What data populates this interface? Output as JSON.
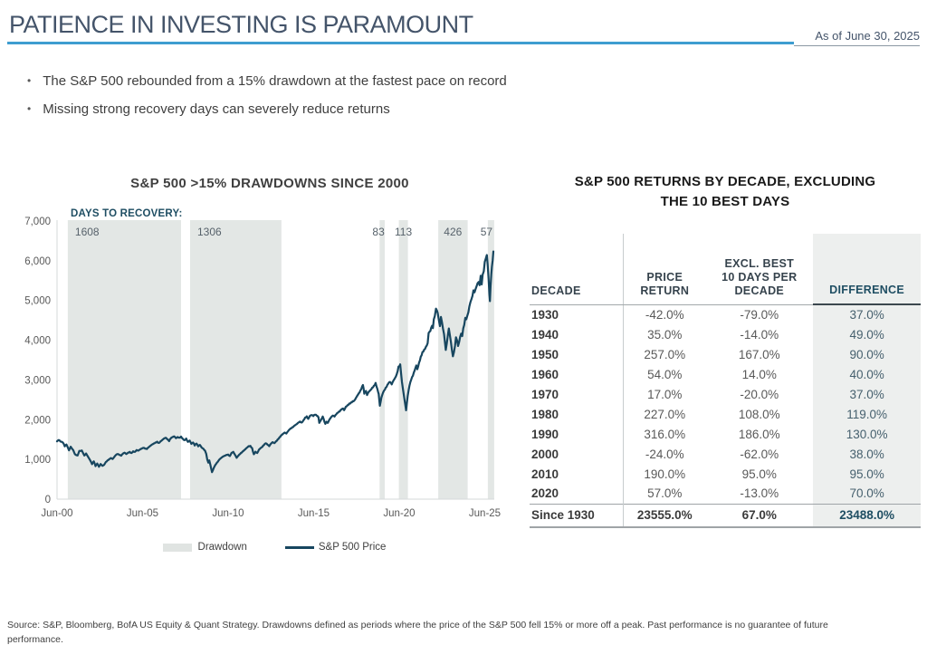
{
  "header": {
    "title": "PATIENCE IN INVESTING IS PARAMOUNT",
    "as_of": "As of June 30, 2025"
  },
  "bullets": [
    "The S&P 500 rebounded from a 15% drawdown at the fastest pace on record",
    "Missing strong recovery days can severely reduce returns"
  ],
  "colors": {
    "accent_rule": "#3E9DD0",
    "price_line": "#17465F",
    "drawdown_fill": "#E3E7E5",
    "axis_line": "#D6D9DA",
    "tick_text": "#595959",
    "region_label_text": "#57626B",
    "navy": "#1F4E63",
    "difference_bg": "#EDEFEE"
  },
  "chart_data": {
    "type": "line",
    "title": "S&P 500 >15% DRAWDOWNS SINCE 2000",
    "annotation_header": "DAYS TO RECOVERY:",
    "series_name": "S&P 500 Price",
    "legend": [
      "Drawdown",
      "S&P 500 Price"
    ],
    "ylim": [
      0,
      7000
    ],
    "x_axis_note": "x is years since Jun-2000",
    "x_ticks": [
      {
        "o": 0,
        "label": "Jun-00"
      },
      {
        "o": 5,
        "label": "Jun-05"
      },
      {
        "o": 10,
        "label": "Jun-10"
      },
      {
        "o": 15,
        "label": "Jun-15"
      },
      {
        "o": 20,
        "label": "Jun-20"
      },
      {
        "o": 25,
        "label": "Jun-25"
      }
    ],
    "y_ticks": [
      {
        "v": 0,
        "label": "0"
      },
      {
        "v": 1000,
        "label": "1,000"
      },
      {
        "v": 2000,
        "label": "2,000"
      },
      {
        "v": 3000,
        "label": "3,000"
      },
      {
        "v": 4000,
        "label": "4,000"
      },
      {
        "v": 5000,
        "label": "5,000"
      },
      {
        "v": 6000,
        "label": "6,000"
      },
      {
        "v": 7000,
        "label": "7,000"
      }
    ],
    "drawdowns": [
      {
        "label": "1608",
        "start": 0.63,
        "end": 7.25,
        "anchor": "start",
        "dx": 8
      },
      {
        "label": "1306",
        "start": 7.78,
        "end": 13.12,
        "anchor": "start",
        "dx": 8
      },
      {
        "label": "83",
        "start": 18.85,
        "end": 19.15,
        "anchor": "middle",
        "dx": -4
      },
      {
        "label": "113",
        "start": 19.98,
        "end": 20.51,
        "anchor": "middle",
        "dx": 0
      },
      {
        "label": "426",
        "start": 22.28,
        "end": 24.0,
        "anchor": "middle",
        "dx": 0
      },
      {
        "label": "57",
        "start": 25.18,
        "end": 25.55,
        "anchor": "middle",
        "dx": -5
      }
    ],
    "price": [
      [
        0,
        1455
      ],
      [
        0.1,
        1490
      ],
      [
        0.2,
        1450
      ],
      [
        0.35,
        1420
      ],
      [
        0.45,
        1330
      ],
      [
        0.55,
        1375
      ],
      [
        0.7,
        1230
      ],
      [
        0.8,
        1320
      ],
      [
        0.95,
        1230
      ],
      [
        1.05,
        1130
      ],
      [
        1.2,
        1100
      ],
      [
        1.3,
        1215
      ],
      [
        1.45,
        1225
      ],
      [
        1.6,
        1100
      ],
      [
        1.7,
        1150
      ],
      [
        1.85,
        1040
      ],
      [
        1.95,
        965
      ],
      [
        2.05,
        880
      ],
      [
        2.15,
        950
      ],
      [
        2.25,
        830
      ],
      [
        2.35,
        895
      ],
      [
        2.45,
        815
      ],
      [
        2.55,
        885
      ],
      [
        2.65,
        840
      ],
      [
        2.75,
        865
      ],
      [
        2.85,
        935
      ],
      [
        2.95,
        975
      ],
      [
        3.05,
        1005
      ],
      [
        3.15,
        1035
      ],
      [
        3.25,
        1010
      ],
      [
        3.35,
        1065
      ],
      [
        3.45,
        1115
      ],
      [
        3.55,
        1135
      ],
      [
        3.65,
        1110
      ],
      [
        3.75,
        1095
      ],
      [
        3.85,
        1145
      ],
      [
        3.95,
        1170
      ],
      [
        4.05,
        1135
      ],
      [
        4.15,
        1170
      ],
      [
        4.25,
        1190
      ],
      [
        4.35,
        1160
      ],
      [
        4.45,
        1205
      ],
      [
        4.55,
        1190
      ],
      [
        4.65,
        1235
      ],
      [
        4.75,
        1220
      ],
      [
        4.85,
        1250
      ],
      [
        4.95,
        1270
      ],
      [
        5.05,
        1290
      ],
      [
        5.15,
        1270
      ],
      [
        5.25,
        1260
      ],
      [
        5.35,
        1305
      ],
      [
        5.45,
        1340
      ],
      [
        5.55,
        1375
      ],
      [
        5.65,
        1400
      ],
      [
        5.75,
        1425
      ],
      [
        5.85,
        1445
      ],
      [
        5.95,
        1415
      ],
      [
        6.05,
        1455
      ],
      [
        6.15,
        1490
      ],
      [
        6.25,
        1525
      ],
      [
        6.35,
        1545
      ],
      [
        6.45,
        1505
      ],
      [
        6.55,
        1460
      ],
      [
        6.65,
        1530
      ],
      [
        6.75,
        1560
      ],
      [
        6.85,
        1580
      ],
      [
        6.95,
        1535
      ],
      [
        7.05,
        1565
      ],
      [
        7.15,
        1545
      ],
      [
        7.25,
        1575
      ],
      [
        7.35,
        1520
      ],
      [
        7.45,
        1485
      ],
      [
        7.55,
        1525
      ],
      [
        7.65,
        1440
      ],
      [
        7.75,
        1475
      ],
      [
        7.85,
        1390
      ],
      [
        7.95,
        1425
      ],
      [
        8.05,
        1350
      ],
      [
        8.15,
        1400
      ],
      [
        8.25,
        1330
      ],
      [
        8.35,
        1365
      ],
      [
        8.45,
        1300
      ],
      [
        8.55,
        1270
      ],
      [
        8.65,
        1220
      ],
      [
        8.72,
        1140
      ],
      [
        8.78,
        1000
      ],
      [
        8.84,
        920
      ],
      [
        8.9,
        975
      ],
      [
        8.96,
        870
      ],
      [
        9.02,
        745
      ],
      [
        9.06,
        680
      ],
      [
        9.12,
        740
      ],
      [
        9.2,
        820
      ],
      [
        9.3,
        890
      ],
      [
        9.4,
        945
      ],
      [
        9.5,
        1000
      ],
      [
        9.6,
        1040
      ],
      [
        9.7,
        1075
      ],
      [
        9.8,
        1095
      ],
      [
        9.9,
        1115
      ],
      [
        10.0,
        1125
      ],
      [
        10.1,
        1085
      ],
      [
        10.2,
        1165
      ],
      [
        10.3,
        1190
      ],
      [
        10.4,
        1115
      ],
      [
        10.5,
        1040
      ],
      [
        10.6,
        1095
      ],
      [
        10.7,
        1135
      ],
      [
        10.8,
        1175
      ],
      [
        10.9,
        1215
      ],
      [
        11.0,
        1255
      ],
      [
        11.1,
        1295
      ],
      [
        11.2,
        1335
      ],
      [
        11.3,
        1340
      ],
      [
        11.4,
        1285
      ],
      [
        11.5,
        1130
      ],
      [
        11.6,
        1195
      ],
      [
        11.7,
        1160
      ],
      [
        11.8,
        1245
      ],
      [
        11.9,
        1285
      ],
      [
        12.0,
        1315
      ],
      [
        12.1,
        1365
      ],
      [
        12.2,
        1405
      ],
      [
        12.3,
        1370
      ],
      [
        12.4,
        1335
      ],
      [
        12.5,
        1395
      ],
      [
        12.6,
        1435
      ],
      [
        12.7,
        1410
      ],
      [
        12.8,
        1455
      ],
      [
        12.9,
        1505
      ],
      [
        13.0,
        1555
      ],
      [
        13.1,
        1605
      ],
      [
        13.2,
        1645
      ],
      [
        13.3,
        1675
      ],
      [
        13.4,
        1650
      ],
      [
        13.5,
        1705
      ],
      [
        13.6,
        1755
      ],
      [
        13.7,
        1785
      ],
      [
        13.8,
        1815
      ],
      [
        13.9,
        1855
      ],
      [
        14.0,
        1885
      ],
      [
        14.1,
        1925
      ],
      [
        14.2,
        1955
      ],
      [
        14.3,
        1930
      ],
      [
        14.4,
        1985
      ],
      [
        14.5,
        2055
      ],
      [
        14.6,
        2085
      ],
      [
        14.68,
        2020
      ],
      [
        14.78,
        2095
      ],
      [
        14.88,
        2115
      ],
      [
        14.98,
        2090
      ],
      [
        15.08,
        2125
      ],
      [
        15.18,
        2100
      ],
      [
        15.28,
        2060
      ],
      [
        15.33,
        1920
      ],
      [
        15.43,
        1995
      ],
      [
        15.53,
        2080
      ],
      [
        15.58,
        2020
      ],
      [
        15.68,
        1895
      ],
      [
        15.75,
        1950
      ],
      [
        15.82,
        1920
      ],
      [
        15.92,
        2005
      ],
      [
        16.02,
        2065
      ],
      [
        16.12,
        2105
      ],
      [
        16.22,
        2080
      ],
      [
        16.32,
        2135
      ],
      [
        16.42,
        2175
      ],
      [
        16.52,
        2205
      ],
      [
        16.62,
        2255
      ],
      [
        16.72,
        2280
      ],
      [
        16.78,
        2240
      ],
      [
        16.88,
        2325
      ],
      [
        16.98,
        2365
      ],
      [
        17.08,
        2405
      ],
      [
        17.18,
        2435
      ],
      [
        17.28,
        2465
      ],
      [
        17.38,
        2485
      ],
      [
        17.48,
        2555
      ],
      [
        17.58,
        2625
      ],
      [
        17.68,
        2685
      ],
      [
        17.78,
        2765
      ],
      [
        17.88,
        2872
      ],
      [
        17.96,
        2655
      ],
      [
        18.06,
        2725
      ],
      [
        18.12,
        2620
      ],
      [
        18.22,
        2705
      ],
      [
        18.32,
        2745
      ],
      [
        18.42,
        2805
      ],
      [
        18.52,
        2855
      ],
      [
        18.62,
        2925
      ],
      [
        18.72,
        2780
      ],
      [
        18.8,
        2650
      ],
      [
        18.87,
        2350
      ],
      [
        18.96,
        2555
      ],
      [
        19.06,
        2685
      ],
      [
        19.16,
        2755
      ],
      [
        19.26,
        2825
      ],
      [
        19.36,
        2905
      ],
      [
        19.46,
        2950
      ],
      [
        19.56,
        2890
      ],
      [
        19.66,
        2985
      ],
      [
        19.76,
        3055
      ],
      [
        19.86,
        3155
      ],
      [
        19.96,
        3335
      ],
      [
        20.06,
        3393
      ],
      [
        20.16,
        2950
      ],
      [
        20.26,
        2650
      ],
      [
        20.33,
        2450
      ],
      [
        20.4,
        2237
      ],
      [
        20.5,
        2605
      ],
      [
        20.6,
        2855
      ],
      [
        20.7,
        3005
      ],
      [
        20.8,
        3105
      ],
      [
        20.9,
        3235
      ],
      [
        21.0,
        3365
      ],
      [
        21.06,
        3270
      ],
      [
        21.16,
        3435
      ],
      [
        21.26,
        3585
      ],
      [
        21.36,
        3705
      ],
      [
        21.46,
        3765
      ],
      [
        21.56,
        3835
      ],
      [
        21.66,
        3925
      ],
      [
        21.72,
        4185
      ],
      [
        21.82,
        4235
      ],
      [
        21.92,
        4365
      ],
      [
        21.97,
        4305
      ],
      [
        22.02,
        4525
      ],
      [
        22.08,
        4605
      ],
      [
        22.15,
        4795
      ],
      [
        22.25,
        4685
      ],
      [
        22.32,
        4505
      ],
      [
        22.38,
        4355
      ],
      [
        22.44,
        4585
      ],
      [
        22.5,
        4455
      ],
      [
        22.56,
        4285
      ],
      [
        22.62,
        4155
      ],
      [
        22.68,
        3905
      ],
      [
        22.72,
        3755
      ],
      [
        22.78,
        3910
      ],
      [
        22.84,
        4125
      ],
      [
        22.9,
        4295
      ],
      [
        22.96,
        4135
      ],
      [
        23.02,
        3955
      ],
      [
        23.08,
        3755
      ],
      [
        23.14,
        3595
      ],
      [
        23.2,
        3705
      ],
      [
        23.26,
        3855
      ],
      [
        23.32,
        4075
      ],
      [
        23.38,
        3995
      ],
      [
        23.44,
        3855
      ],
      [
        23.5,
        3945
      ],
      [
        23.56,
        4085
      ],
      [
        23.62,
        4165
      ],
      [
        23.68,
        4105
      ],
      [
        23.74,
        4295
      ],
      [
        23.8,
        4385
      ],
      [
        23.86,
        4565
      ],
      [
        23.92,
        4525
      ],
      [
        23.98,
        4615
      ],
      [
        24.04,
        4705
      ],
      [
        24.1,
        4855
      ],
      [
        24.16,
        4955
      ],
      [
        24.22,
        5035
      ],
      [
        24.28,
        5115
      ],
      [
        24.34,
        5255
      ],
      [
        24.4,
        5205
      ],
      [
        24.46,
        5285
      ],
      [
        24.52,
        5355
      ],
      [
        24.58,
        5435
      ],
      [
        24.64,
        5465
      ],
      [
        24.7,
        5385
      ],
      [
        24.76,
        5625
      ],
      [
        24.82,
        5405
      ],
      [
        24.88,
        5655
      ],
      [
        24.94,
        5735
      ],
      [
        25.0,
        5975
      ],
      [
        25.06,
        6055
      ],
      [
        25.12,
        6145
      ],
      [
        25.17,
        5905
      ],
      [
        25.22,
        5555
      ],
      [
        25.27,
        5155
      ],
      [
        25.3,
        4985
      ],
      [
        25.34,
        5355
      ],
      [
        25.38,
        5655
      ],
      [
        25.42,
        5855
      ],
      [
        25.46,
        6005
      ],
      [
        25.5,
        6235
      ]
    ]
  },
  "table": {
    "title_lines": [
      "S&P 500 RETURNS BY DECADE, EXCLUDING",
      "THE 10 BEST DAYS"
    ],
    "columns": [
      [
        "DECADE"
      ],
      [
        "PRICE",
        "RETURN"
      ],
      [
        "EXCL. BEST",
        "10 DAYS PER",
        "DECADE"
      ],
      [
        "DIFFERENCE"
      ]
    ],
    "rows": [
      [
        "1930",
        "-42.0%",
        "-79.0%",
        "37.0%"
      ],
      [
        "1940",
        "35.0%",
        "-14.0%",
        "49.0%"
      ],
      [
        "1950",
        "257.0%",
        "167.0%",
        "90.0%"
      ],
      [
        "1960",
        "54.0%",
        "14.0%",
        "40.0%"
      ],
      [
        "1970",
        "17.0%",
        "-20.0%",
        "37.0%"
      ],
      [
        "1980",
        "227.0%",
        "108.0%",
        "119.0%"
      ],
      [
        "1990",
        "316.0%",
        "186.0%",
        "130.0%"
      ],
      [
        "2000",
        "-24.0%",
        "-62.0%",
        "38.0%"
      ],
      [
        "2010",
        "190.0%",
        "95.0%",
        "95.0%"
      ],
      [
        "2020",
        "57.0%",
        "-13.0%",
        "70.0%"
      ]
    ],
    "total_row": [
      "Since 1930",
      "23555.0%",
      "67.0%",
      "23488.0%"
    ]
  },
  "footer": {
    "text": "Source: S&P, Bloomberg, BofA US Equity & Quant Strategy. Drawdowns defined as periods where the price of the S&P 500 fell 15% or more off a peak. Past performance is no guarantee of future performance."
  }
}
